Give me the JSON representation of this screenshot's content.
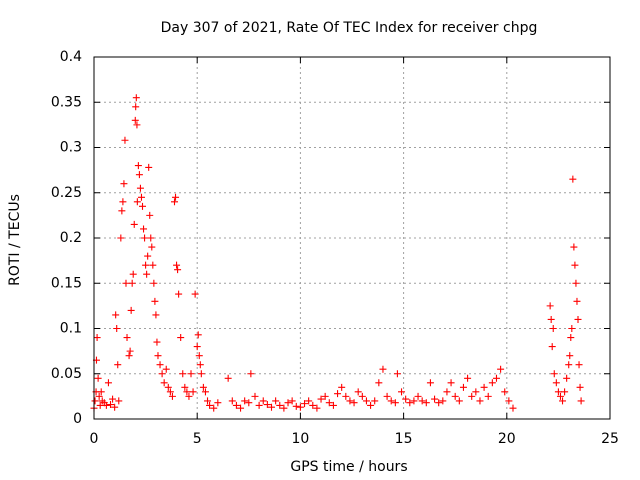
{
  "chart_data": {
    "type": "scatter",
    "title": "Day 307 of 2021, Rate Of TEC Index for receiver chpg",
    "xlabel": "GPS time / hours",
    "ylabel": "ROTI / TECUs",
    "xlim": [
      0,
      25
    ],
    "ylim": [
      0,
      0.4
    ],
    "xticks": [
      "0",
      "5",
      "10",
      "15",
      "20",
      "25"
    ],
    "yticks": [
      "0",
      "0.05",
      "0.1",
      "0.15",
      "0.2",
      "0.25",
      "0.3",
      "0.35",
      "0.4"
    ],
    "grid": true,
    "marker": "plus",
    "color": "#ff0000",
    "series": [
      {
        "points": [
          [
            0.0,
            0.012
          ],
          [
            0.05,
            0.02
          ],
          [
            0.1,
            0.03
          ],
          [
            0.12,
            0.065
          ],
          [
            0.15,
            0.09
          ],
          [
            0.2,
            0.045
          ],
          [
            0.25,
            0.025
          ],
          [
            0.3,
            0.015
          ],
          [
            0.35,
            0.03
          ],
          [
            0.4,
            0.02
          ],
          [
            0.5,
            0.018
          ],
          [
            0.6,
            0.015
          ],
          [
            0.7,
            0.04
          ],
          [
            0.8,
            0.016
          ],
          [
            0.9,
            0.022
          ],
          [
            1.0,
            0.013
          ],
          [
            1.05,
            0.115
          ],
          [
            1.1,
            0.1
          ],
          [
            1.15,
            0.06
          ],
          [
            1.2,
            0.02
          ],
          [
            1.3,
            0.2
          ],
          [
            1.35,
            0.23
          ],
          [
            1.4,
            0.24
          ],
          [
            1.45,
            0.26
          ],
          [
            1.5,
            0.308
          ],
          [
            1.55,
            0.15
          ],
          [
            1.6,
            0.09
          ],
          [
            1.7,
            0.07
          ],
          [
            1.75,
            0.075
          ],
          [
            1.8,
            0.12
          ],
          [
            1.85,
            0.15
          ],
          [
            1.9,
            0.16
          ],
          [
            1.95,
            0.215
          ],
          [
            2.0,
            0.33
          ],
          [
            2.02,
            0.345
          ],
          [
            2.05,
            0.355
          ],
          [
            2.08,
            0.325
          ],
          [
            2.1,
            0.24
          ],
          [
            2.15,
            0.28
          ],
          [
            2.2,
            0.27
          ],
          [
            2.25,
            0.255
          ],
          [
            2.3,
            0.245
          ],
          [
            2.35,
            0.235
          ],
          [
            2.4,
            0.21
          ],
          [
            2.45,
            0.2
          ],
          [
            2.5,
            0.17
          ],
          [
            2.55,
            0.16
          ],
          [
            2.6,
            0.18
          ],
          [
            2.65,
            0.278
          ],
          [
            2.7,
            0.225
          ],
          [
            2.75,
            0.2
          ],
          [
            2.8,
            0.19
          ],
          [
            2.85,
            0.17
          ],
          [
            2.9,
            0.15
          ],
          [
            2.95,
            0.13
          ],
          [
            3.0,
            0.115
          ],
          [
            3.05,
            0.085
          ],
          [
            3.1,
            0.07
          ],
          [
            3.2,
            0.06
          ],
          [
            3.3,
            0.05
          ],
          [
            3.4,
            0.04
          ],
          [
            3.5,
            0.055
          ],
          [
            3.6,
            0.035
          ],
          [
            3.7,
            0.03
          ],
          [
            3.8,
            0.025
          ],
          [
            3.9,
            0.24
          ],
          [
            3.95,
            0.245
          ],
          [
            4.0,
            0.17
          ],
          [
            4.05,
            0.165
          ],
          [
            4.1,
            0.138
          ],
          [
            4.2,
            0.09
          ],
          [
            4.3,
            0.05
          ],
          [
            4.4,
            0.035
          ],
          [
            4.5,
            0.03
          ],
          [
            4.6,
            0.025
          ],
          [
            4.7,
            0.05
          ],
          [
            4.8,
            0.03
          ],
          [
            4.9,
            0.138
          ],
          [
            5.0,
            0.08
          ],
          [
            5.05,
            0.093
          ],
          [
            5.1,
            0.07
          ],
          [
            5.15,
            0.06
          ],
          [
            5.2,
            0.05
          ],
          [
            5.3,
            0.035
          ],
          [
            5.4,
            0.03
          ],
          [
            5.5,
            0.02
          ],
          [
            5.6,
            0.015
          ],
          [
            5.8,
            0.012
          ],
          [
            6.0,
            0.018
          ],
          [
            6.5,
            0.045
          ],
          [
            6.7,
            0.02
          ],
          [
            6.9,
            0.015
          ],
          [
            7.1,
            0.012
          ],
          [
            7.3,
            0.02
          ],
          [
            7.5,
            0.018
          ],
          [
            7.6,
            0.05
          ],
          [
            7.8,
            0.025
          ],
          [
            8.0,
            0.015
          ],
          [
            8.2,
            0.02
          ],
          [
            8.4,
            0.016
          ],
          [
            8.6,
            0.013
          ],
          [
            8.8,
            0.02
          ],
          [
            9.0,
            0.015
          ],
          [
            9.2,
            0.012
          ],
          [
            9.4,
            0.018
          ],
          [
            9.6,
            0.02
          ],
          [
            9.8,
            0.014
          ],
          [
            10.0,
            0.013
          ],
          [
            10.2,
            0.017
          ],
          [
            10.4,
            0.02
          ],
          [
            10.6,
            0.015
          ],
          [
            10.8,
            0.012
          ],
          [
            11.0,
            0.022
          ],
          [
            11.2,
            0.025
          ],
          [
            11.4,
            0.018
          ],
          [
            11.6,
            0.015
          ],
          [
            11.8,
            0.028
          ],
          [
            12.0,
            0.035
          ],
          [
            12.2,
            0.025
          ],
          [
            12.4,
            0.02
          ],
          [
            12.6,
            0.018
          ],
          [
            12.8,
            0.03
          ],
          [
            13.0,
            0.025
          ],
          [
            13.2,
            0.02
          ],
          [
            13.4,
            0.015
          ],
          [
            13.6,
            0.02
          ],
          [
            13.8,
            0.04
          ],
          [
            14.0,
            0.055
          ],
          [
            14.2,
            0.025
          ],
          [
            14.4,
            0.02
          ],
          [
            14.6,
            0.018
          ],
          [
            14.7,
            0.05
          ],
          [
            14.9,
            0.03
          ],
          [
            15.1,
            0.022
          ],
          [
            15.3,
            0.018
          ],
          [
            15.5,
            0.02
          ],
          [
            15.7,
            0.025
          ],
          [
            15.9,
            0.02
          ],
          [
            16.1,
            0.018
          ],
          [
            16.3,
            0.04
          ],
          [
            16.5,
            0.022
          ],
          [
            16.7,
            0.018
          ],
          [
            16.9,
            0.02
          ],
          [
            17.1,
            0.03
          ],
          [
            17.3,
            0.04
          ],
          [
            17.5,
            0.025
          ],
          [
            17.7,
            0.02
          ],
          [
            17.9,
            0.035
          ],
          [
            18.1,
            0.045
          ],
          [
            18.3,
            0.025
          ],
          [
            18.5,
            0.03
          ],
          [
            18.7,
            0.02
          ],
          [
            18.9,
            0.035
          ],
          [
            19.1,
            0.025
          ],
          [
            19.3,
            0.04
          ],
          [
            19.5,
            0.045
          ],
          [
            19.7,
            0.055
          ],
          [
            19.9,
            0.03
          ],
          [
            20.1,
            0.02
          ],
          [
            20.3,
            0.012
          ],
          [
            22.1,
            0.125
          ],
          [
            22.15,
            0.11
          ],
          [
            22.2,
            0.08
          ],
          [
            22.25,
            0.1
          ],
          [
            22.3,
            0.05
          ],
          [
            22.4,
            0.04
          ],
          [
            22.5,
            0.03
          ],
          [
            22.6,
            0.025
          ],
          [
            22.7,
            0.02
          ],
          [
            22.8,
            0.03
          ],
          [
            22.9,
            0.045
          ],
          [
            23.0,
            0.06
          ],
          [
            23.05,
            0.07
          ],
          [
            23.1,
            0.09
          ],
          [
            23.15,
            0.1
          ],
          [
            23.2,
            0.265
          ],
          [
            23.25,
            0.19
          ],
          [
            23.3,
            0.17
          ],
          [
            23.35,
            0.15
          ],
          [
            23.4,
            0.13
          ],
          [
            23.45,
            0.11
          ],
          [
            23.5,
            0.06
          ],
          [
            23.55,
            0.035
          ],
          [
            23.6,
            0.02
          ]
        ]
      }
    ]
  }
}
